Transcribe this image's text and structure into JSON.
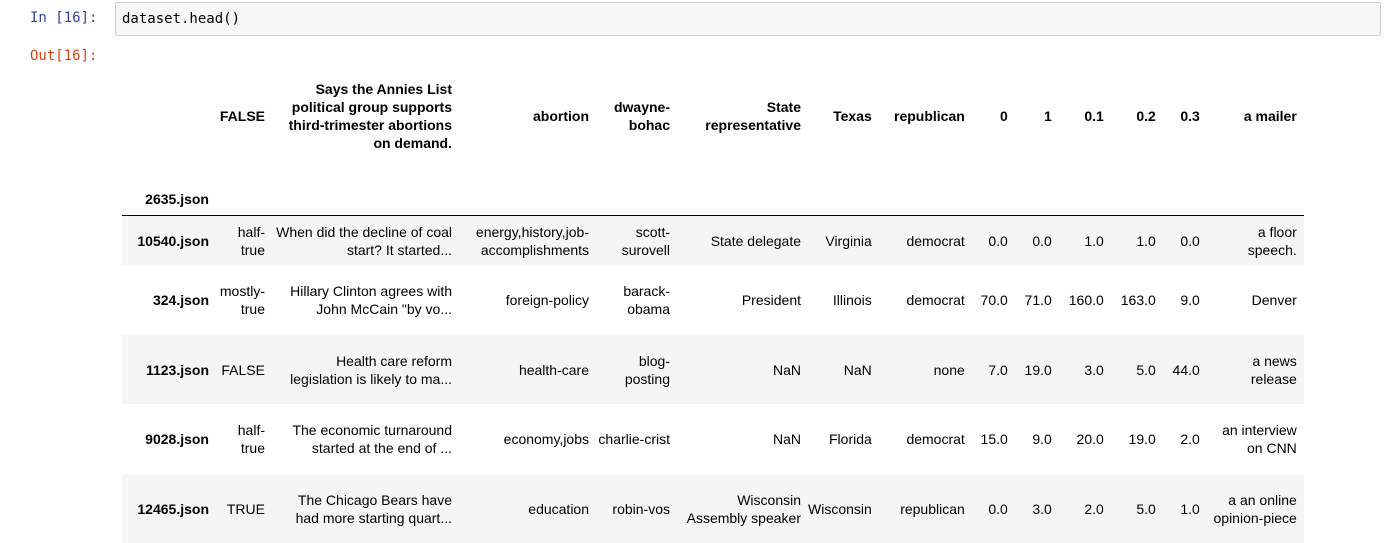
{
  "cell": {
    "in_prompt": "In [16]:",
    "out_prompt": "Out[16]:",
    "code": "dataset.head()"
  },
  "table": {
    "index_name": "2635.json",
    "columns": [
      "FALSE",
      "Says the Annies List political group supports third-trimester abortions on demand.",
      "abortion",
      "dwayne-bohac",
      "State representative",
      "Texas",
      "republican",
      "0",
      "1",
      "0.1",
      "0.2",
      "0.3",
      "a mailer"
    ],
    "rows": [
      {
        "index": "10540.json",
        "cells": [
          "half-true",
          "When did the decline of coal start? It started...",
          "energy,history,job-accomplishments",
          "scott-surovell",
          "State delegate",
          "Virginia",
          "democrat",
          "0.0",
          "0.0",
          "1.0",
          "1.0",
          "0.0",
          "a floor speech."
        ]
      },
      {
        "index": "324.json",
        "cells": [
          "mostly-true",
          "Hillary Clinton agrees with John McCain \"by vo...",
          "foreign-policy",
          "barack-obama",
          "President",
          "Illinois",
          "democrat",
          "70.0",
          "71.0",
          "160.0",
          "163.0",
          "9.0",
          "Denver"
        ]
      },
      {
        "index": "1123.json",
        "cells": [
          "FALSE",
          "Health care reform legislation is likely to ma...",
          "health-care",
          "blog-posting",
          "NaN",
          "NaN",
          "none",
          "7.0",
          "19.0",
          "3.0",
          "5.0",
          "44.0",
          "a news release"
        ]
      },
      {
        "index": "9028.json",
        "cells": [
          "half-true",
          "The economic turnaround started at the end of ...",
          "economy,jobs",
          "charlie-crist",
          "NaN",
          "Florida",
          "democrat",
          "15.0",
          "9.0",
          "20.0",
          "19.0",
          "2.0",
          "an interview on CNN"
        ]
      },
      {
        "index": "12465.json",
        "cells": [
          "TRUE",
          "The Chicago Bears have had more starting quart...",
          "education",
          "robin-vos",
          "Wisconsin Assembly speaker",
          "Wisconsin",
          "republican",
          "0.0",
          "3.0",
          "2.0",
          "5.0",
          "1.0",
          "a an online opinion-piece"
        ]
      }
    ]
  }
}
